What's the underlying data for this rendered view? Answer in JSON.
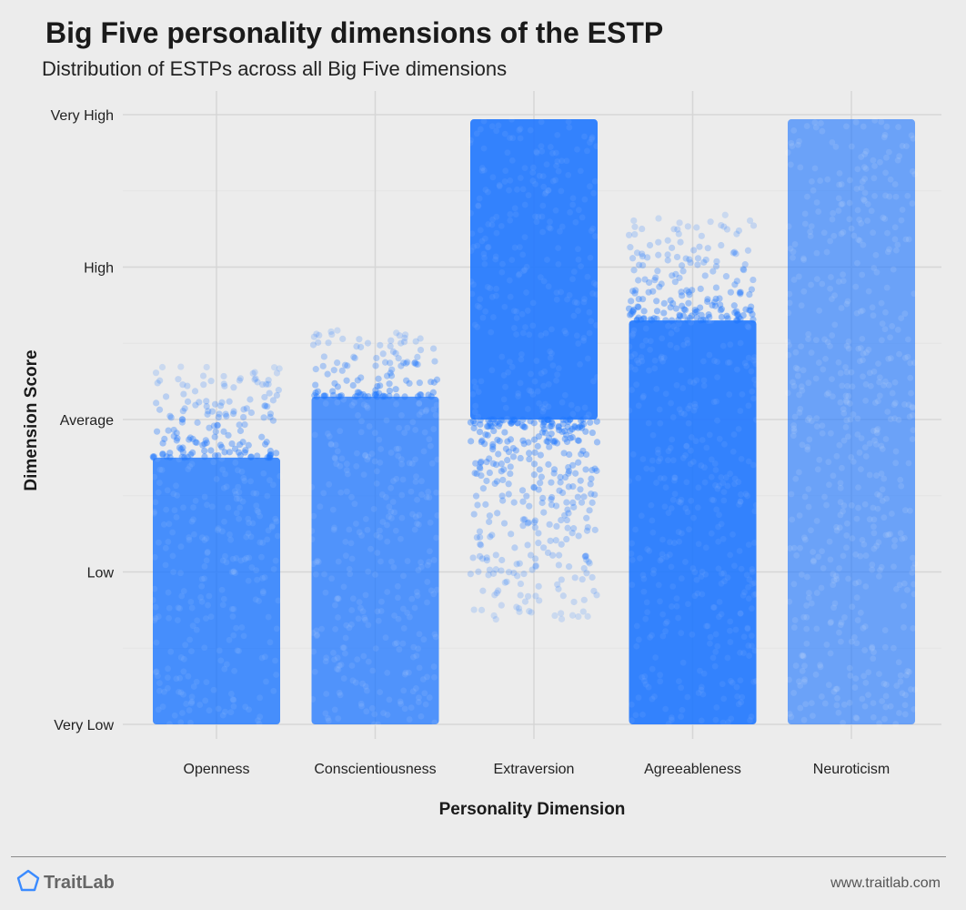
{
  "header": {
    "title": "Big Five personality dimensions of the ESTP",
    "subtitle": "Distribution of ESTPs across all Big Five dimensions"
  },
  "footer": {
    "brand": "TraitLab",
    "site": "www.traitlab.com",
    "logo_icon": "pentagon-icon"
  },
  "colors": {
    "point": "#1f77ff",
    "background": "#ececec",
    "grid_major": "#d6d6d6",
    "grid_minor": "#e4e4e4"
  },
  "chart_data": {
    "type": "scatter",
    "title": "Big Five personality dimensions of the ESTP",
    "subtitle": "Distribution of ESTPs across all Big Five dimensions",
    "xlabel": "Personality Dimension",
    "ylabel": "Dimension Score",
    "categories": [
      "Openness",
      "Conscientiousness",
      "Extraversion",
      "Agreeableness",
      "Neuroticism"
    ],
    "y_ticks": [
      "Very Low",
      "Low",
      "Average",
      "High",
      "Very High"
    ],
    "ylim": [
      0,
      4
    ],
    "grid": true,
    "series": [
      {
        "category": "Openness",
        "dense_min": 0.0,
        "dense_max": 1.75,
        "sparse_min": 0.0,
        "sparse_max": 2.35,
        "density": 0.9
      },
      {
        "category": "Conscientiousness",
        "dense_min": 0.0,
        "dense_max": 2.15,
        "sparse_min": 0.0,
        "sparse_max": 2.6,
        "density": 0.85
      },
      {
        "category": "Extraversion",
        "dense_min": 2.0,
        "dense_max": 3.97,
        "sparse_min": 0.68,
        "sparse_max": 3.97,
        "density": 1.0
      },
      {
        "category": "Agreeableness",
        "dense_min": 0.0,
        "dense_max": 2.65,
        "sparse_min": 0.0,
        "sparse_max": 3.35,
        "density": 1.0
      },
      {
        "category": "Neuroticism",
        "dense_min": 0.0,
        "dense_max": 3.97,
        "sparse_min": 0.0,
        "sparse_max": 3.97,
        "density": 0.7
      }
    ]
  }
}
